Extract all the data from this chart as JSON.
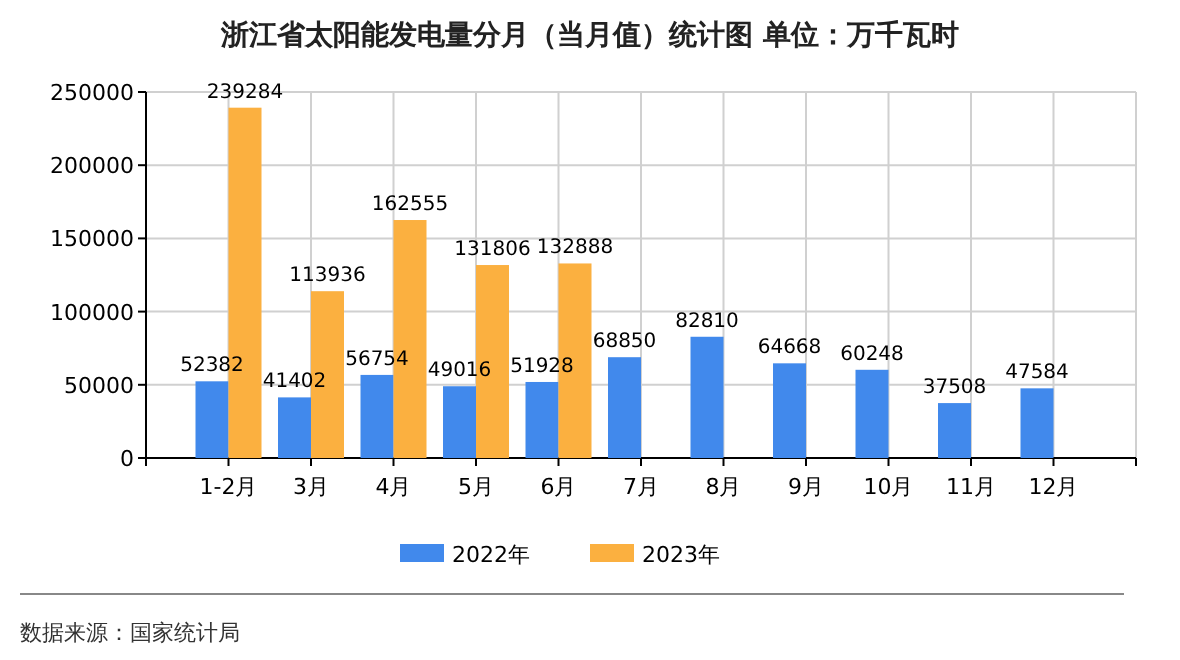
{
  "chart_data": {
    "type": "bar",
    "title": "浙江省太阳能发电量分月（当月值）统计图 单位：万千瓦时",
    "categories": [
      "1-2月",
      "3月",
      "4月",
      "5月",
      "6月",
      "7月",
      "8月",
      "9月",
      "10月",
      "11月",
      "12月"
    ],
    "series": [
      {
        "name": "2022年",
        "color": "#4189ec",
        "values": [
          52382,
          41402,
          56754,
          49016,
          51928,
          68850,
          82810,
          64668,
          60248,
          37508,
          47584
        ]
      },
      {
        "name": "2023年",
        "color": "#fbb040",
        "values": [
          239284,
          113936,
          162555,
          131806,
          132888,
          null,
          null,
          null,
          null,
          null,
          null
        ]
      }
    ],
    "ylim": [
      0,
      250000
    ],
    "yticks": [
      0,
      50000,
      100000,
      150000,
      200000,
      250000
    ],
    "grid": true,
    "legend": "bottom",
    "data_labels": true,
    "annotations": [
      "数据来源：国家统计局"
    ]
  }
}
